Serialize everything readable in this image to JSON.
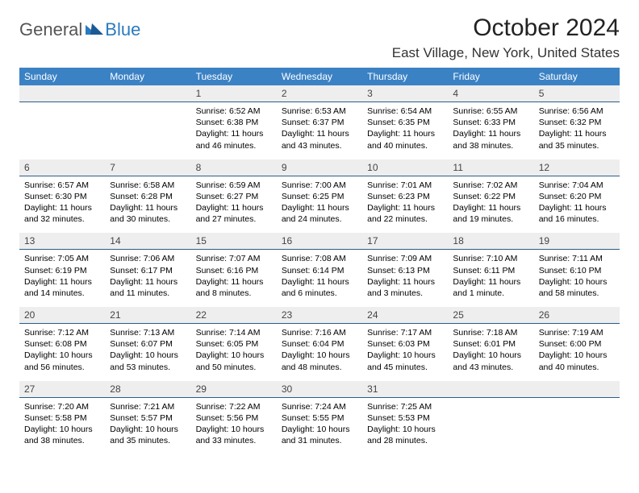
{
  "logo": {
    "general": "General",
    "blue": "Blue"
  },
  "title": "October 2024",
  "location": "East Village, New York, United States",
  "dow_bg": "#3b82c4",
  "daynum_bg": "#eeeeee",
  "daynum_border": "#2a5c8a",
  "dow": [
    "Sunday",
    "Monday",
    "Tuesday",
    "Wednesday",
    "Thursday",
    "Friday",
    "Saturday"
  ],
  "weeks": [
    [
      {
        "n": "",
        "sr": "",
        "ss": "",
        "dl": ""
      },
      {
        "n": "",
        "sr": "",
        "ss": "",
        "dl": ""
      },
      {
        "n": "1",
        "sr": "Sunrise: 6:52 AM",
        "ss": "Sunset: 6:38 PM",
        "dl": "Daylight: 11 hours and 46 minutes."
      },
      {
        "n": "2",
        "sr": "Sunrise: 6:53 AM",
        "ss": "Sunset: 6:37 PM",
        "dl": "Daylight: 11 hours and 43 minutes."
      },
      {
        "n": "3",
        "sr": "Sunrise: 6:54 AM",
        "ss": "Sunset: 6:35 PM",
        "dl": "Daylight: 11 hours and 40 minutes."
      },
      {
        "n": "4",
        "sr": "Sunrise: 6:55 AM",
        "ss": "Sunset: 6:33 PM",
        "dl": "Daylight: 11 hours and 38 minutes."
      },
      {
        "n": "5",
        "sr": "Sunrise: 6:56 AM",
        "ss": "Sunset: 6:32 PM",
        "dl": "Daylight: 11 hours and 35 minutes."
      }
    ],
    [
      {
        "n": "6",
        "sr": "Sunrise: 6:57 AM",
        "ss": "Sunset: 6:30 PM",
        "dl": "Daylight: 11 hours and 32 minutes."
      },
      {
        "n": "7",
        "sr": "Sunrise: 6:58 AM",
        "ss": "Sunset: 6:28 PM",
        "dl": "Daylight: 11 hours and 30 minutes."
      },
      {
        "n": "8",
        "sr": "Sunrise: 6:59 AM",
        "ss": "Sunset: 6:27 PM",
        "dl": "Daylight: 11 hours and 27 minutes."
      },
      {
        "n": "9",
        "sr": "Sunrise: 7:00 AM",
        "ss": "Sunset: 6:25 PM",
        "dl": "Daylight: 11 hours and 24 minutes."
      },
      {
        "n": "10",
        "sr": "Sunrise: 7:01 AM",
        "ss": "Sunset: 6:23 PM",
        "dl": "Daylight: 11 hours and 22 minutes."
      },
      {
        "n": "11",
        "sr": "Sunrise: 7:02 AM",
        "ss": "Sunset: 6:22 PM",
        "dl": "Daylight: 11 hours and 19 minutes."
      },
      {
        "n": "12",
        "sr": "Sunrise: 7:04 AM",
        "ss": "Sunset: 6:20 PM",
        "dl": "Daylight: 11 hours and 16 minutes."
      }
    ],
    [
      {
        "n": "13",
        "sr": "Sunrise: 7:05 AM",
        "ss": "Sunset: 6:19 PM",
        "dl": "Daylight: 11 hours and 14 minutes."
      },
      {
        "n": "14",
        "sr": "Sunrise: 7:06 AM",
        "ss": "Sunset: 6:17 PM",
        "dl": "Daylight: 11 hours and 11 minutes."
      },
      {
        "n": "15",
        "sr": "Sunrise: 7:07 AM",
        "ss": "Sunset: 6:16 PM",
        "dl": "Daylight: 11 hours and 8 minutes."
      },
      {
        "n": "16",
        "sr": "Sunrise: 7:08 AM",
        "ss": "Sunset: 6:14 PM",
        "dl": "Daylight: 11 hours and 6 minutes."
      },
      {
        "n": "17",
        "sr": "Sunrise: 7:09 AM",
        "ss": "Sunset: 6:13 PM",
        "dl": "Daylight: 11 hours and 3 minutes."
      },
      {
        "n": "18",
        "sr": "Sunrise: 7:10 AM",
        "ss": "Sunset: 6:11 PM",
        "dl": "Daylight: 11 hours and 1 minute."
      },
      {
        "n": "19",
        "sr": "Sunrise: 7:11 AM",
        "ss": "Sunset: 6:10 PM",
        "dl": "Daylight: 10 hours and 58 minutes."
      }
    ],
    [
      {
        "n": "20",
        "sr": "Sunrise: 7:12 AM",
        "ss": "Sunset: 6:08 PM",
        "dl": "Daylight: 10 hours and 56 minutes."
      },
      {
        "n": "21",
        "sr": "Sunrise: 7:13 AM",
        "ss": "Sunset: 6:07 PM",
        "dl": "Daylight: 10 hours and 53 minutes."
      },
      {
        "n": "22",
        "sr": "Sunrise: 7:14 AM",
        "ss": "Sunset: 6:05 PM",
        "dl": "Daylight: 10 hours and 50 minutes."
      },
      {
        "n": "23",
        "sr": "Sunrise: 7:16 AM",
        "ss": "Sunset: 6:04 PM",
        "dl": "Daylight: 10 hours and 48 minutes."
      },
      {
        "n": "24",
        "sr": "Sunrise: 7:17 AM",
        "ss": "Sunset: 6:03 PM",
        "dl": "Daylight: 10 hours and 45 minutes."
      },
      {
        "n": "25",
        "sr": "Sunrise: 7:18 AM",
        "ss": "Sunset: 6:01 PM",
        "dl": "Daylight: 10 hours and 43 minutes."
      },
      {
        "n": "26",
        "sr": "Sunrise: 7:19 AM",
        "ss": "Sunset: 6:00 PM",
        "dl": "Daylight: 10 hours and 40 minutes."
      }
    ],
    [
      {
        "n": "27",
        "sr": "Sunrise: 7:20 AM",
        "ss": "Sunset: 5:58 PM",
        "dl": "Daylight: 10 hours and 38 minutes."
      },
      {
        "n": "28",
        "sr": "Sunrise: 7:21 AM",
        "ss": "Sunset: 5:57 PM",
        "dl": "Daylight: 10 hours and 35 minutes."
      },
      {
        "n": "29",
        "sr": "Sunrise: 7:22 AM",
        "ss": "Sunset: 5:56 PM",
        "dl": "Daylight: 10 hours and 33 minutes."
      },
      {
        "n": "30",
        "sr": "Sunrise: 7:24 AM",
        "ss": "Sunset: 5:55 PM",
        "dl": "Daylight: 10 hours and 31 minutes."
      },
      {
        "n": "31",
        "sr": "Sunrise: 7:25 AM",
        "ss": "Sunset: 5:53 PM",
        "dl": "Daylight: 10 hours and 28 minutes."
      },
      {
        "n": "",
        "sr": "",
        "ss": "",
        "dl": ""
      },
      {
        "n": "",
        "sr": "",
        "ss": "",
        "dl": ""
      }
    ]
  ]
}
